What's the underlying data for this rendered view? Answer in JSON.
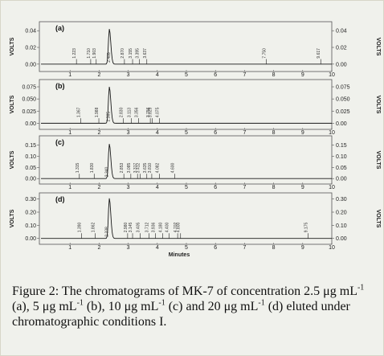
{
  "caption": {
    "figure_label": "Figure 2:",
    "text_1": " The chromatograms of MK-7 of concentration 2.5 μg mL",
    "sup_1": "-1",
    "text_2": " (a), 5 μg mL",
    "sup_2": "-1",
    "text_3": " (b), 10 μg mL",
    "sup_3": "-1",
    "text_4": " (c) and 20 μg mL",
    "sup_4": "-1",
    "text_5": " (d) eluted under chromatographic conditions I."
  },
  "chart_data": [
    {
      "panel": "(a)",
      "type": "line",
      "xlabel": "",
      "ylabel_left": "Volts",
      "ylabel_right": "Volts",
      "xlim": [
        0,
        10
      ],
      "ylim": [
        -0.005,
        0.045
      ],
      "left_ticks": [
        "0.04",
        "0.02",
        "0.00"
      ],
      "left_tick_values": [
        0.04,
        0.02,
        0.0
      ],
      "right_ticks": [
        "0.04",
        "0.02",
        "0.00"
      ],
      "peak": {
        "x": 2.35,
        "height": 0.042,
        "width": 0.045
      },
      "peak_labels": [
        "1.223",
        "1.710",
        "1.903",
        "2.405",
        "2.870",
        "3.155",
        "3.395",
        "3.637",
        "7.750",
        "9.617"
      ],
      "peak_label_x": [
        1.22,
        1.71,
        1.9,
        2.4,
        2.87,
        3.15,
        3.39,
        3.64,
        7.75,
        9.62
      ]
    },
    {
      "panel": "(b)",
      "type": "line",
      "xlabel": "",
      "ylabel_left": "Volts",
      "ylabel_right": "Volts",
      "xlim": [
        0,
        10
      ],
      "ylim": [
        -0.006,
        0.08
      ],
      "left_ticks": [
        "0.075",
        "0.050",
        "0.025",
        "0.00"
      ],
      "left_tick_values": [
        0.075,
        0.05,
        0.025,
        0.0
      ],
      "right_ticks": [
        "0.075",
        "0.050",
        "0.025",
        "0.00"
      ],
      "peak": {
        "x": 2.35,
        "height": 0.075,
        "width": 0.045
      },
      "peak_labels": [
        "1.367",
        "1.988",
        "2.385",
        "2.830",
        "3.113",
        "3.356",
        "3.756",
        "3.829",
        "4.075"
      ],
      "peak_label_x": [
        1.37,
        1.99,
        2.39,
        2.83,
        3.11,
        3.36,
        3.76,
        3.83,
        4.08
      ]
    },
    {
      "panel": "(c)",
      "type": "line",
      "xlabel": "",
      "ylabel_left": "Volts",
      "ylabel_right": "Volts",
      "xlim": [
        0,
        10
      ],
      "ylim": [
        -0.01,
        0.17
      ],
      "left_ticks": [
        "0.15",
        "0.10",
        "0.05",
        "0.00"
      ],
      "left_tick_values": [
        0.15,
        0.1,
        0.05,
        0.0
      ],
      "right_ticks": [
        "0.15",
        "0.10",
        "0.05",
        "0.00"
      ],
      "peak": {
        "x": 2.35,
        "height": 0.155,
        "width": 0.045
      },
      "peak_labels": [
        "1.315",
        "1.830",
        "2.340",
        "2.853",
        "3.085",
        "3.317",
        "3.412",
        "3.635",
        "3.810",
        "4.082",
        "4.600"
      ],
      "peak_label_x": [
        1.32,
        1.83,
        2.34,
        2.85,
        3.09,
        3.32,
        3.41,
        3.64,
        3.81,
        4.08,
        4.6
      ]
    },
    {
      "panel": "(d)",
      "type": "line",
      "xlabel": "Minutes",
      "ylabel_left": "Volts",
      "ylabel_right": "Volts",
      "xlim": [
        0,
        10
      ],
      "ylim": [
        -0.02,
        0.31
      ],
      "left_ticks": [
        "0.30",
        "0.20",
        "0.10",
        "0.00"
      ],
      "left_tick_values": [
        0.3,
        0.2,
        0.1,
        0.0
      ],
      "right_ticks": [
        "0.30",
        "0.20",
        "0.10",
        "0.00"
      ],
      "peak": {
        "x": 2.35,
        "height": 0.305,
        "width": 0.045
      },
      "peak_labels": [
        "1.390",
        "1.862",
        "2.338",
        "2.980",
        "3.145",
        "3.405",
        "3.712",
        "3.936",
        "4.180",
        "4.400",
        "4.702",
        "4.800",
        "9.175"
      ],
      "peak_label_x": [
        1.39,
        1.86,
        2.34,
        2.98,
        3.15,
        3.41,
        3.71,
        3.94,
        4.18,
        4.4,
        4.7,
        4.8,
        9.18
      ]
    }
  ],
  "x_ticks": [
    "1",
    "2",
    "3",
    "4",
    "5",
    "6",
    "7",
    "8",
    "9",
    "10"
  ],
  "x_tick_values": [
    1,
    2,
    3,
    4,
    5,
    6,
    7,
    8,
    9,
    10
  ],
  "x_axis_title": "Minutes",
  "colors": {
    "trace": "#1a1a1a",
    "background": "#f0f1ec",
    "box": "#555555"
  }
}
